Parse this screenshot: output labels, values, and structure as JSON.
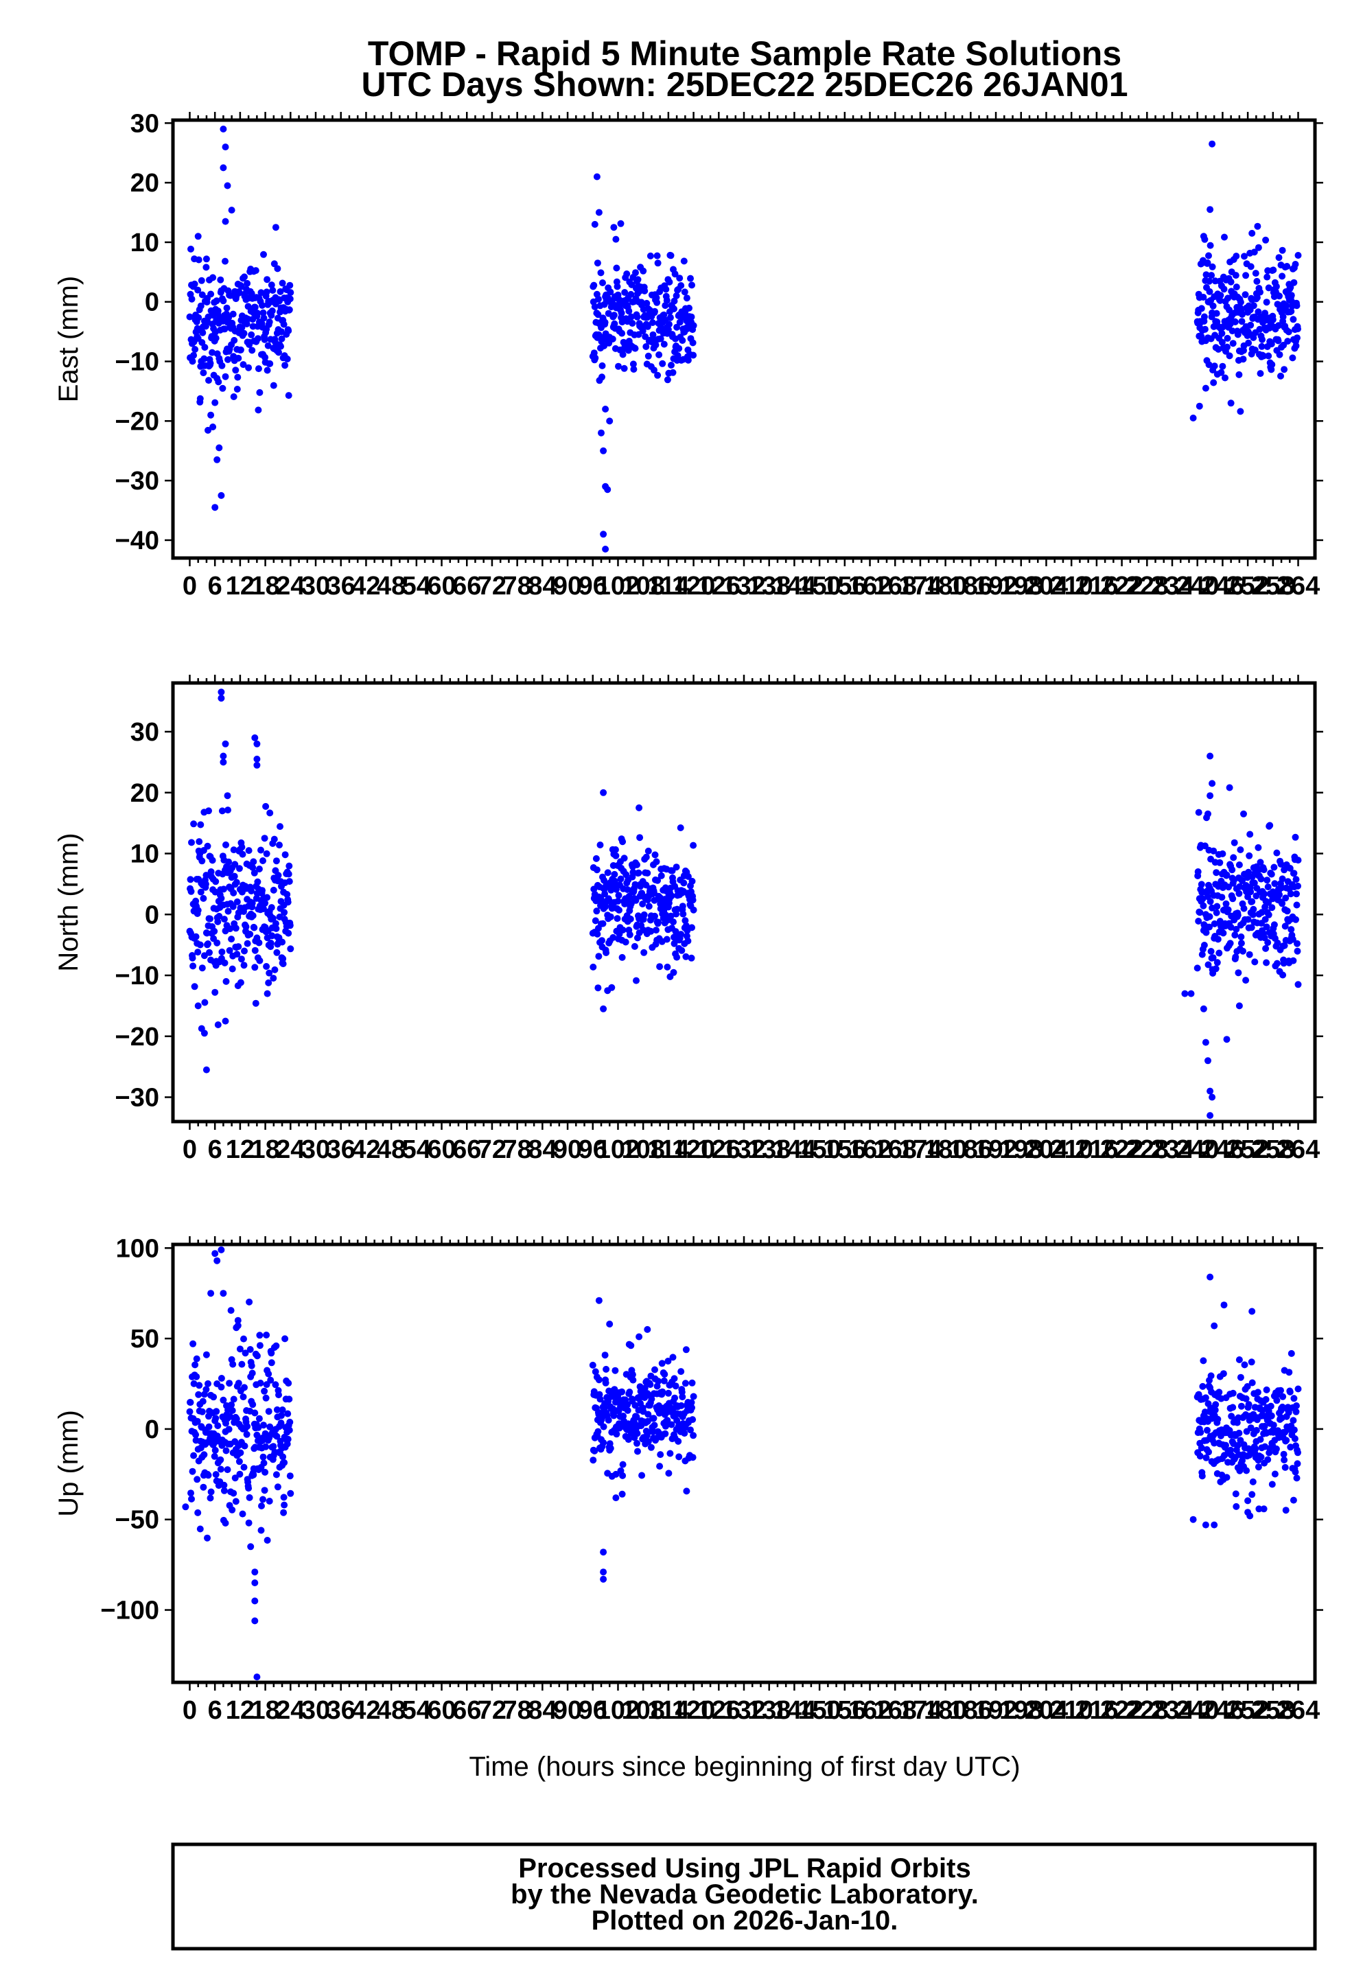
{
  "title_line1": "TOMP - Rapid 5 Minute Sample Rate Solutions",
  "title_line2": "UTC Days Shown:  25DEC22 25DEC26 26JAN01",
  "xlabel": "Time (hours since beginning of first day UTC)",
  "x_tick_labels": [
    "0",
    "6",
    "12",
    "18",
    "24",
    "30",
    "36",
    "42",
    "48",
    "54",
    "60",
    "66",
    "72",
    "78",
    "84",
    "90",
    "96",
    "102",
    "108",
    "114",
    "120",
    "126",
    "132",
    "138",
    "144",
    "150",
    "156",
    "162",
    "168",
    "174",
    "180",
    "186",
    "192",
    "198",
    "204",
    "210",
    "216",
    "222",
    "228",
    "234",
    "240",
    "246",
    "252",
    "258",
    "264"
  ],
  "footer": {
    "line1": "Processed Using JPL Rapid Orbits",
    "line2": "by the Nevada Geodetic Laboratory.",
    "line3": "Plotted on 2026-Jan-10."
  },
  "point_color": "#0000ff",
  "chart_data": [
    {
      "type": "scatter",
      "ylabel": "East (mm)",
      "xlim": [
        -4,
        268
      ],
      "ylim": [
        -43,
        30.5
      ],
      "yticks": [
        30,
        20,
        10,
        0,
        -10,
        -20,
        -30,
        -40
      ],
      "grid": false,
      "clusters": [
        {
          "x_range": [
            0,
            24
          ],
          "center": -3,
          "spread": 5.5
        },
        {
          "x_range": [
            96,
            120
          ],
          "center": -3,
          "spread": 4.5
        },
        {
          "x_range": [
            240,
            264
          ],
          "center": -1.5,
          "spread": 5.5
        }
      ],
      "outliers": [
        [
          8,
          29
        ],
        [
          8.5,
          26
        ],
        [
          8,
          22.5
        ],
        [
          9,
          19.5
        ],
        [
          8.5,
          13.5
        ],
        [
          20.5,
          12.5
        ],
        [
          2,
          11
        ],
        [
          6,
          -34.5
        ],
        [
          7.5,
          -32.5
        ],
        [
          6.5,
          -26.5
        ],
        [
          7,
          -24.5
        ],
        [
          5.5,
          -21
        ],
        [
          5,
          -19
        ],
        [
          97,
          21
        ],
        [
          97.5,
          15
        ],
        [
          96.5,
          13
        ],
        [
          101,
          12.5
        ],
        [
          101.5,
          10.5
        ],
        [
          98.5,
          -39
        ],
        [
          99,
          -41.5
        ],
        [
          99,
          -31
        ],
        [
          99.5,
          -31.5
        ],
        [
          98.5,
          -25
        ],
        [
          98,
          -22
        ],
        [
          100,
          -20
        ],
        [
          99,
          -18
        ],
        [
          243.5,
          26.5
        ],
        [
          243,
          15.5
        ],
        [
          241.5,
          11
        ],
        [
          253,
          11.5
        ],
        [
          239,
          -19.5
        ],
        [
          240.5,
          -17.5
        ],
        [
          248,
          -17
        ],
        [
          242,
          -14.5
        ]
      ]
    },
    {
      "type": "scatter",
      "ylabel": "North (mm)",
      "xlim": [
        -4,
        268
      ],
      "ylim": [
        -34,
        38
      ],
      "yticks": [
        30,
        20,
        10,
        0,
        -10,
        -20,
        -30
      ],
      "grid": false,
      "clusters": [
        {
          "x_range": [
            0,
            24
          ],
          "center": 1,
          "spread": 6.5
        },
        {
          "x_range": [
            96,
            120
          ],
          "center": 2,
          "spread": 4.5
        },
        {
          "x_range": [
            240,
            264
          ],
          "center": 1,
          "spread": 6
        }
      ],
      "outliers": [
        [
          7.5,
          36.5
        ],
        [
          7.5,
          35.5
        ],
        [
          8.5,
          28
        ],
        [
          8,
          26
        ],
        [
          8,
          25
        ],
        [
          15.5,
          29
        ],
        [
          16,
          28
        ],
        [
          16,
          25.5
        ],
        [
          16,
          24.5
        ],
        [
          9,
          19.5
        ],
        [
          4,
          -25.5
        ],
        [
          3.5,
          -19.5
        ],
        [
          2,
          -15
        ],
        [
          8.5,
          -17.5
        ],
        [
          18.5,
          -13
        ],
        [
          98.5,
          20
        ],
        [
          107,
          17.5
        ],
        [
          98.5,
          -15.5
        ],
        [
          99.5,
          -12.5
        ],
        [
          100.5,
          -12
        ],
        [
          243,
          26
        ],
        [
          243.5,
          21.5
        ],
        [
          243,
          19.5
        ],
        [
          242.5,
          16.5
        ],
        [
          243,
          -29
        ],
        [
          243.5,
          -30
        ],
        [
          243,
          -33
        ],
        [
          242.5,
          -24
        ],
        [
          242,
          -21
        ],
        [
          241.5,
          -15.5
        ],
        [
          247,
          -20.5
        ],
        [
          250,
          -15
        ],
        [
          264,
          -11.5
        ],
        [
          238.5,
          -13
        ],
        [
          237,
          -13
        ]
      ]
    },
    {
      "type": "scatter",
      "ylabel": "Up (mm)",
      "xlim": [
        -4,
        268
      ],
      "ylim": [
        -140,
        102
      ],
      "yticks": [
        100,
        50,
        0,
        -50,
        -100
      ],
      "grid": false,
      "clusters": [
        {
          "x_range": [
            0,
            24
          ],
          "center": 0,
          "spread": 22
        },
        {
          "x_range": [
            96,
            120
          ],
          "center": 8,
          "spread": 14
        },
        {
          "x_range": [
            240,
            264
          ],
          "center": 0,
          "spread": 16
        }
      ],
      "outliers": [
        [
          6,
          97
        ],
        [
          6.5,
          93
        ],
        [
          7.5,
          99
        ],
        [
          5,
          75
        ],
        [
          8,
          75
        ],
        [
          11.5,
          60
        ],
        [
          15.5,
          -79
        ],
        [
          15.5,
          -85
        ],
        [
          15.5,
          -95
        ],
        [
          15.5,
          -106
        ],
        [
          16,
          -137
        ],
        [
          14.5,
          -65
        ],
        [
          17,
          -56
        ],
        [
          -1,
          -43
        ],
        [
          8.5,
          -52
        ],
        [
          11,
          -40
        ],
        [
          22.5,
          -42
        ],
        [
          97.5,
          71
        ],
        [
          100,
          58
        ],
        [
          98.5,
          -68
        ],
        [
          98.5,
          -79
        ],
        [
          98.5,
          -83
        ],
        [
          101.5,
          -38
        ],
        [
          103,
          -36
        ],
        [
          109,
          55
        ],
        [
          107,
          51
        ],
        [
          243,
          84
        ],
        [
          244,
          57
        ],
        [
          253,
          65
        ],
        [
          239,
          -50
        ],
        [
          242,
          -53
        ],
        [
          244,
          -53
        ],
        [
          252,
          -46
        ],
        [
          252.5,
          -48
        ]
      ]
    }
  ]
}
